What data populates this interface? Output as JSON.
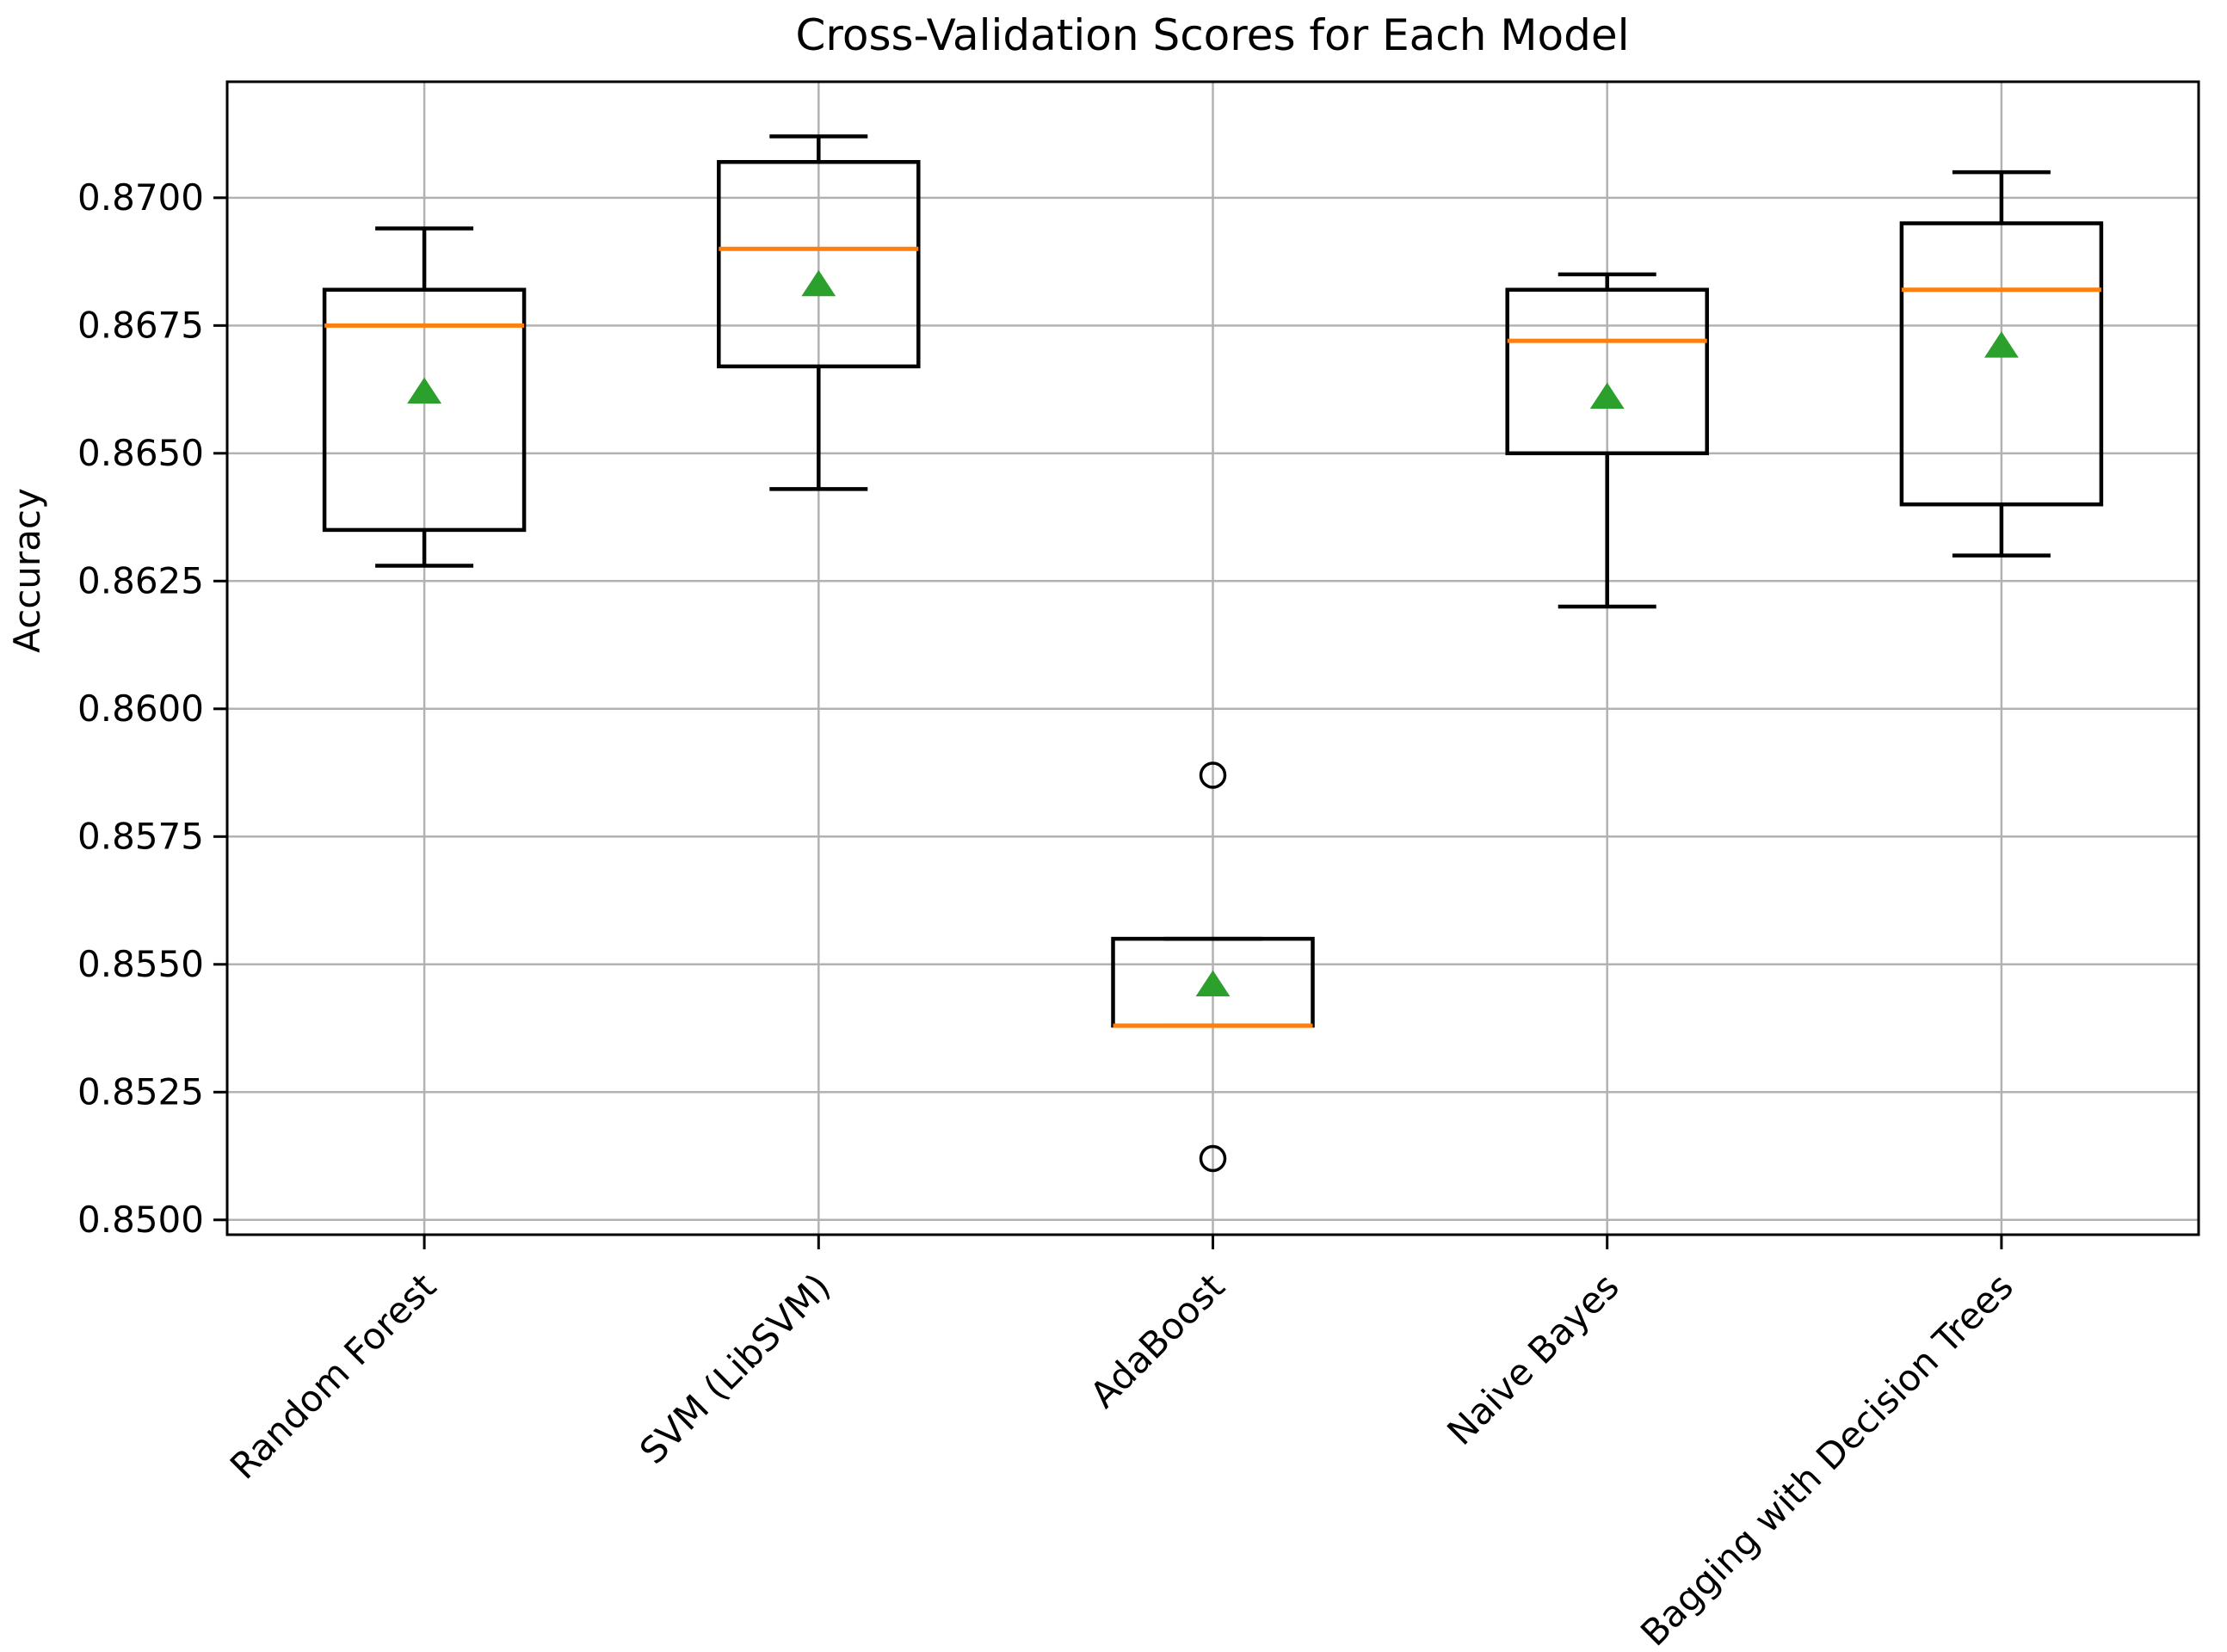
{
  "chart_data": {
    "type": "boxplot",
    "title": "Cross-Validation Scores for Each Model",
    "xlabel": "",
    "ylabel": "Accuracy",
    "categories": [
      "Random Forest",
      "SVM (LibSVM)",
      "AdaBoost",
      "Naive Bayes",
      "Bagging with Decision Trees"
    ],
    "ylim": [
      0.84971,
      0.87227
    ],
    "y_ticks": [
      0.85,
      0.8525,
      0.855,
      0.8575,
      0.86,
      0.8625,
      0.865,
      0.8675,
      0.87
    ],
    "y_tick_labels": [
      "0.8500",
      "0.8525",
      "0.8550",
      "0.8575",
      "0.8600",
      "0.8625",
      "0.8650",
      "0.8675",
      "0.8700"
    ],
    "x_tick_rotation_deg": 45,
    "grid": true,
    "legend": false,
    "series": [
      {
        "name": "Random Forest",
        "whislo": 0.8628,
        "q1": 0.8635,
        "med": 0.8675,
        "q3": 0.8682,
        "whishi": 0.8694,
        "mean": 0.8662,
        "fliers": []
      },
      {
        "name": "SVM (LibSVM)",
        "whislo": 0.8643,
        "q1": 0.8667,
        "med": 0.869,
        "q3": 0.8707,
        "whishi": 0.8712,
        "mean": 0.8683,
        "fliers": []
      },
      {
        "name": "AdaBoost",
        "whislo": 0.8538,
        "q1": 0.8538,
        "med": 0.8538,
        "q3": 0.8555,
        "whishi": 0.8555,
        "mean": 0.8546,
        "fliers": [
          0.8587,
          0.8512
        ]
      },
      {
        "name": "Naive Bayes",
        "whislo": 0.862,
        "q1": 0.865,
        "med": 0.8672,
        "q3": 0.8682,
        "whishi": 0.8685,
        "mean": 0.8661,
        "fliers": []
      },
      {
        "name": "Bagging with Decision Trees",
        "whislo": 0.863,
        "q1": 0.864,
        "med": 0.8682,
        "q3": 0.8695,
        "whishi": 0.8705,
        "mean": 0.8671,
        "fliers": []
      }
    ],
    "marker_styles": {
      "mean": "triangle-up",
      "flier": "circle"
    },
    "colors": {
      "background": "#ffffff",
      "spine": "#000000",
      "grid": "#b2b2b2",
      "box_edge": "#000000",
      "whisker": "#000000",
      "median": "#ff7f0e",
      "mean_marker": "#2ca02c",
      "flier_edge": "#000000",
      "text": "#000000"
    }
  }
}
